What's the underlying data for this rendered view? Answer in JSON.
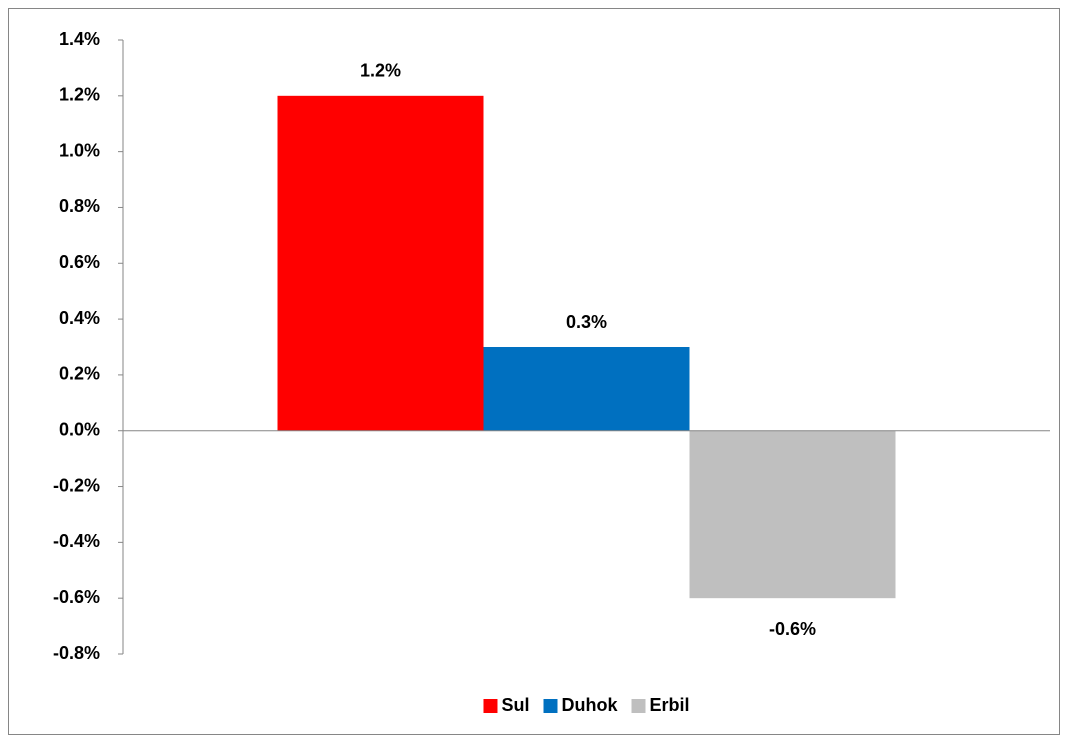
{
  "chart_data": {
    "type": "bar",
    "categories": [
      null
    ],
    "series": [
      {
        "name": "Sul",
        "color": "#ff0000",
        "values": [
          1.2
        ],
        "value_labels": [
          "1.2%"
        ]
      },
      {
        "name": "Duhok",
        "color": "#0070c0",
        "values": [
          0.3
        ],
        "value_labels": [
          "0.3%"
        ]
      },
      {
        "name": "Erbil",
        "color": "#bfbfbf",
        "values": [
          -0.6
        ],
        "value_labels": [
          "-0.6%"
        ]
      }
    ],
    "ylim": [
      -0.8,
      1.4
    ],
    "yticks": [
      {
        "value": -0.8,
        "label": "-0.8%"
      },
      {
        "value": -0.6,
        "label": "-0.6%"
      },
      {
        "value": -0.4,
        "label": "-0.4%"
      },
      {
        "value": -0.2,
        "label": "-0.2%"
      },
      {
        "value": 0,
        "label": "0.0%"
      },
      {
        "value": 0.2,
        "label": "0.2%"
      },
      {
        "value": 0.4,
        "label": "0.4%"
      },
      {
        "value": 0.6,
        "label": "0.6%"
      },
      {
        "value": 0.8,
        "label": "0.8%"
      },
      {
        "value": 1.0,
        "label": "1.0%"
      },
      {
        "value": 1.2,
        "label": "1.2%"
      },
      {
        "value": 1.4,
        "label": "1.4%"
      }
    ],
    "legend": "bottom"
  }
}
